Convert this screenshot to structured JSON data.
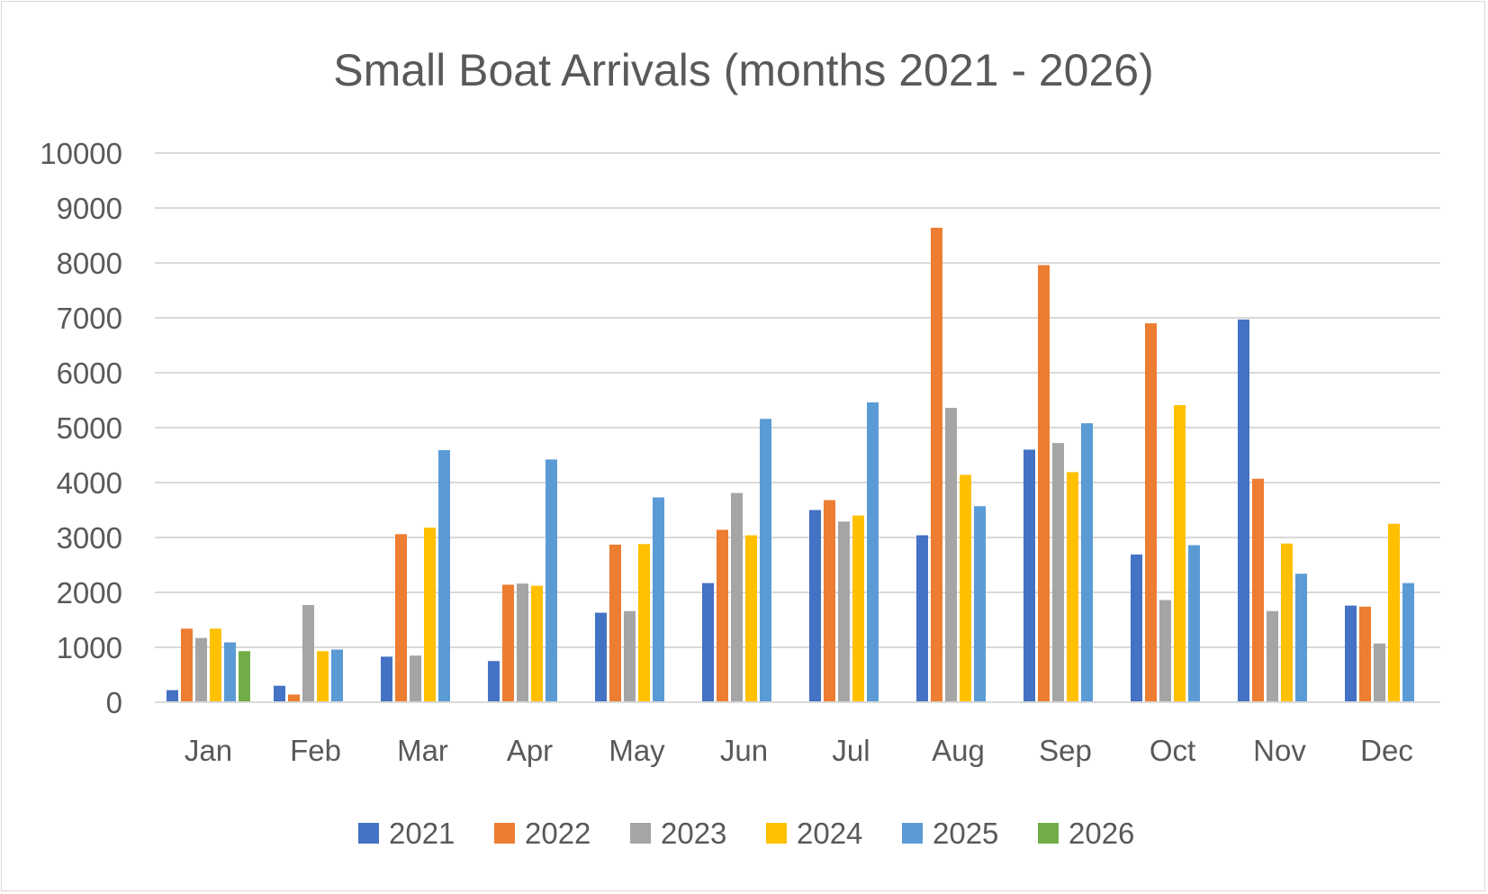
{
  "chart_data": {
    "type": "bar",
    "title": "Small Boat Arrivals (months 2021 - 2026)",
    "xlabel": "",
    "ylabel": "",
    "ylim": [
      0,
      10000
    ],
    "yticks": [
      0,
      1000,
      2000,
      3000,
      4000,
      5000,
      6000,
      7000,
      8000,
      9000,
      10000
    ],
    "grid": true,
    "legend_position": "bottom",
    "categories": [
      "Jan",
      "Feb",
      "Mar",
      "Apr",
      "May",
      "Jun",
      "Jul",
      "Aug",
      "Sep",
      "Oct",
      "Nov",
      "Dec"
    ],
    "series": [
      {
        "name": "2021",
        "color": "#4472C4",
        "values": [
          220,
          300,
          830,
          750,
          1630,
          2170,
          3500,
          3040,
          4600,
          2690,
          6970,
          1760
        ]
      },
      {
        "name": "2022",
        "color": "#ED7D31",
        "values": [
          1340,
          140,
          3060,
          2140,
          2870,
          3140,
          3680,
          8640,
          7960,
          6900,
          4070,
          1740
        ]
      },
      {
        "name": "2023",
        "color": "#A5A5A5",
        "values": [
          1170,
          1770,
          850,
          2160,
          1660,
          3810,
          3290,
          5360,
          4720,
          1860,
          1660,
          1070
        ]
      },
      {
        "name": "2024",
        "color": "#FFC000",
        "values": [
          1340,
          930,
          3180,
          2120,
          2880,
          3040,
          3400,
          4140,
          4190,
          5410,
          2890,
          3250
        ]
      },
      {
        "name": "2025",
        "color": "#5B9BD5",
        "values": [
          1090,
          960,
          4590,
          4420,
          3730,
          5160,
          5460,
          3570,
          5080,
          2860,
          2340,
          2170
        ]
      },
      {
        "name": "2026",
        "color": "#70AD47",
        "values": [
          930,
          null,
          null,
          null,
          null,
          null,
          null,
          null,
          null,
          null,
          null,
          null
        ]
      }
    ]
  }
}
